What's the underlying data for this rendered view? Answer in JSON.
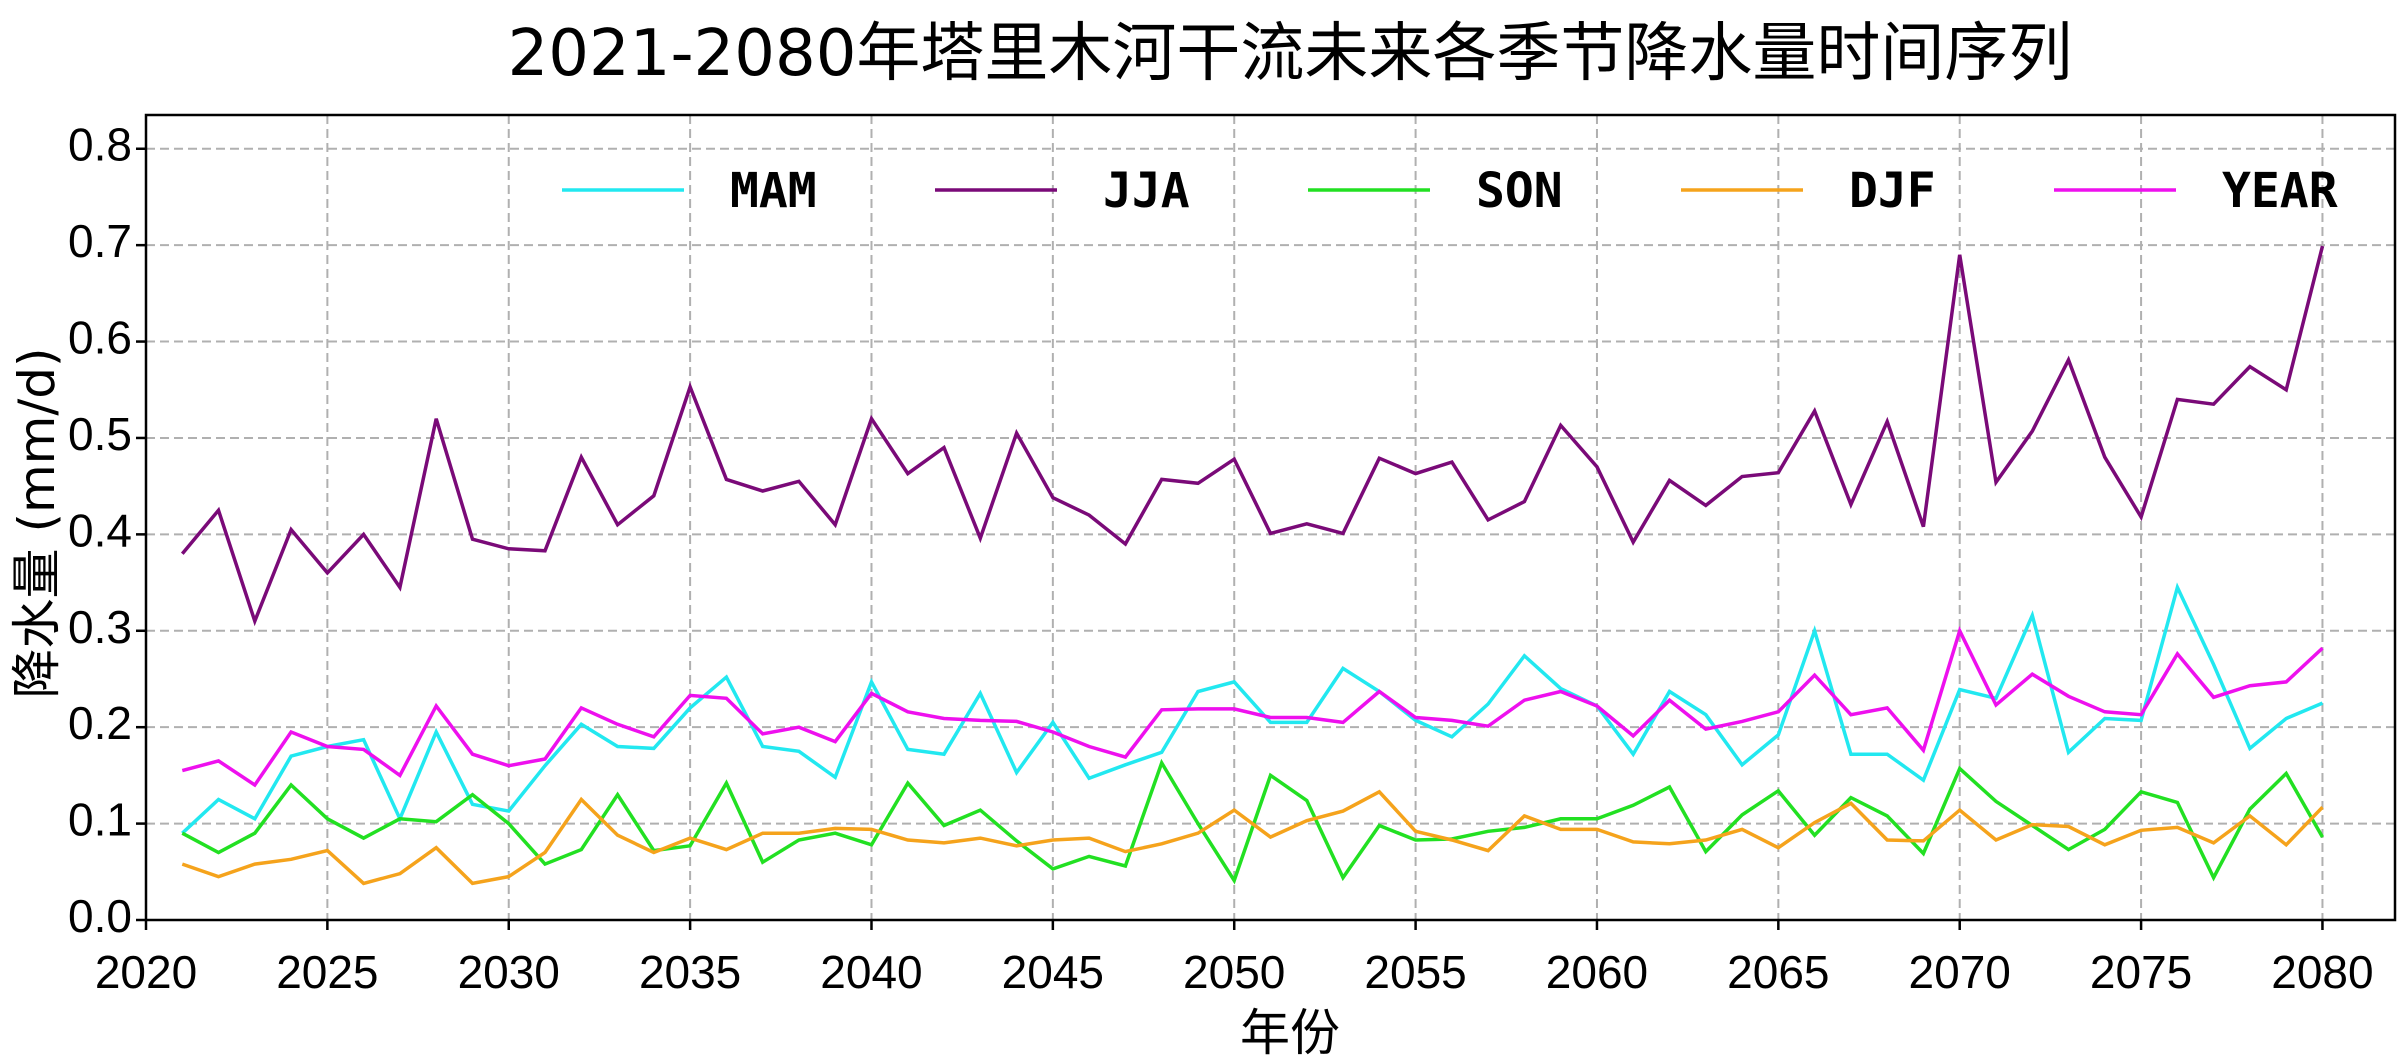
{
  "chart_data": {
    "type": "line",
    "title": "2021-2080年塔里木河干流未来各季节降水量时间序列",
    "xlabel": "年份",
    "ylabel": "降水量 (mm/d)",
    "xlim": [
      2020,
      2082
    ],
    "ylim": [
      0,
      0.835
    ],
    "xticks": [
      2020,
      2025,
      2030,
      2035,
      2040,
      2045,
      2050,
      2055,
      2060,
      2065,
      2070,
      2075,
      2080
    ],
    "xtick_labels": [
      "2020",
      "2025",
      "2030",
      "2035",
      "2040",
      "2045",
      "2050",
      "2055",
      "2060",
      "2065",
      "2070",
      "2075",
      "2080"
    ],
    "yticks": [
      0,
      0.1,
      0.2,
      0.3,
      0.4,
      0.5,
      0.6,
      0.7,
      0.8
    ],
    "ytick_labels": [
      "0.0",
      "0.1",
      "0.2",
      "0.3",
      "0.4",
      "0.5",
      "0.6",
      "0.7",
      "0.8"
    ],
    "grid": true,
    "legend_placement": "top-right",
    "x_start": 2021,
    "series": [
      {
        "name": "MAM",
        "color": "#22e8f0",
        "values": [
          0.09,
          0.125,
          0.105,
          0.17,
          0.18,
          0.187,
          0.105,
          0.195,
          0.12,
          0.113,
          0.16,
          0.203,
          0.18,
          0.178,
          0.22,
          0.252,
          0.18,
          0.175,
          0.148,
          0.247,
          0.177,
          0.172,
          0.235,
          0.153,
          0.205,
          0.147,
          0.161,
          0.174,
          0.237,
          0.247,
          0.205,
          0.205,
          0.261,
          0.237,
          0.207,
          0.19,
          0.224,
          0.274,
          0.24,
          0.222,
          0.172,
          0.237,
          0.213,
          0.161,
          0.192,
          0.3,
          0.172,
          0.172,
          0.145,
          0.239,
          0.23,
          0.316,
          0.174,
          0.209,
          0.207,
          0.345,
          0.265,
          0.178,
          0.209,
          0.225
        ]
      },
      {
        "name": "JJA",
        "color": "#7a0a78",
        "values": [
          0.38,
          0.425,
          0.31,
          0.405,
          0.36,
          0.4,
          0.345,
          0.52,
          0.395,
          0.385,
          0.383,
          0.48,
          0.41,
          0.44,
          0.553,
          0.457,
          0.445,
          0.455,
          0.41,
          0.52,
          0.463,
          0.49,
          0.396,
          0.505,
          0.438,
          0.42,
          0.39,
          0.457,
          0.453,
          0.478,
          0.401,
          0.411,
          0.401,
          0.479,
          0.463,
          0.475,
          0.415,
          0.434,
          0.513,
          0.47,
          0.392,
          0.456,
          0.43,
          0.46,
          0.464,
          0.528,
          0.431,
          0.517,
          0.408,
          0.69,
          0.454,
          0.507,
          0.581,
          0.48,
          0.418,
          0.54,
          0.535,
          0.574,
          0.55,
          0.699
        ]
      },
      {
        "name": "SON",
        "color": "#22e022",
        "values": [
          0.09,
          0.07,
          0.09,
          0.14,
          0.105,
          0.085,
          0.105,
          0.102,
          0.13,
          0.1,
          0.058,
          0.073,
          0.13,
          0.072,
          0.077,
          0.142,
          0.06,
          0.083,
          0.09,
          0.078,
          0.142,
          0.098,
          0.114,
          0.082,
          0.053,
          0.066,
          0.056,
          0.163,
          0.1,
          0.041,
          0.15,
          0.124,
          0.044,
          0.098,
          0.083,
          0.084,
          0.092,
          0.096,
          0.105,
          0.105,
          0.119,
          0.138,
          0.071,
          0.109,
          0.134,
          0.088,
          0.127,
          0.108,
          0.069,
          0.157,
          0.123,
          0.098,
          0.073,
          0.094,
          0.133,
          0.122,
          0.044,
          0.115,
          0.152,
          0.086
        ]
      },
      {
        "name": "DJF",
        "color": "#f5a31c",
        "values": [
          0.058,
          0.045,
          0.058,
          0.063,
          0.072,
          0.038,
          0.048,
          0.075,
          0.038,
          0.045,
          0.07,
          0.125,
          0.088,
          0.07,
          0.085,
          0.073,
          0.09,
          0.09,
          0.095,
          0.094,
          0.083,
          0.08,
          0.085,
          0.077,
          0.083,
          0.085,
          0.071,
          0.079,
          0.09,
          0.114,
          0.086,
          0.103,
          0.113,
          0.133,
          0.092,
          0.083,
          0.072,
          0.108,
          0.094,
          0.094,
          0.081,
          0.079,
          0.083,
          0.094,
          0.075,
          0.101,
          0.121,
          0.083,
          0.082,
          0.114,
          0.083,
          0.099,
          0.097,
          0.078,
          0.093,
          0.096,
          0.08,
          0.108,
          0.078,
          0.117
        ]
      },
      {
        "name": "YEAR",
        "color": "#ee10ee",
        "values": [
          0.155,
          0.165,
          0.14,
          0.195,
          0.18,
          0.177,
          0.15,
          0.222,
          0.172,
          0.16,
          0.167,
          0.22,
          0.203,
          0.19,
          0.233,
          0.23,
          0.193,
          0.2,
          0.185,
          0.235,
          0.216,
          0.209,
          0.207,
          0.206,
          0.195,
          0.18,
          0.169,
          0.218,
          0.219,
          0.219,
          0.21,
          0.21,
          0.205,
          0.237,
          0.21,
          0.207,
          0.201,
          0.228,
          0.237,
          0.222,
          0.191,
          0.228,
          0.198,
          0.206,
          0.216,
          0.254,
          0.213,
          0.22,
          0.176,
          0.3,
          0.223,
          0.255,
          0.232,
          0.216,
          0.213,
          0.276,
          0.231,
          0.243,
          0.247,
          0.282
        ]
      }
    ]
  }
}
